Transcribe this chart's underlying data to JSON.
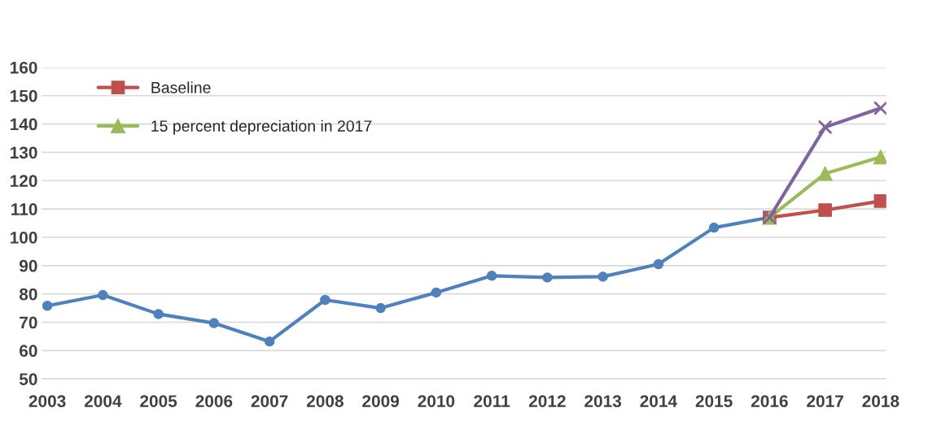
{
  "chart_data": {
    "type": "line",
    "categories": [
      "2003",
      "2004",
      "2005",
      "2006",
      "2007",
      "2008",
      "2009",
      "2010",
      "2011",
      "2012",
      "2013",
      "2014",
      "2015",
      "2016",
      "2017",
      "2018"
    ],
    "series": [
      {
        "color": "#4f81bd",
        "marker": "circle",
        "values": [
          75.8,
          79.6,
          72.9,
          69.7,
          63.2,
          77.9,
          75.0,
          80.5,
          86.4,
          85.8,
          86.1,
          90.5,
          103.4,
          107.0,
          null,
          null
        ]
      },
      {
        "name": "Baseline",
        "color": "#c0504d",
        "marker": "square",
        "values": [
          null,
          null,
          null,
          null,
          null,
          null,
          null,
          null,
          null,
          null,
          null,
          null,
          null,
          107.0,
          109.6,
          112.8
        ]
      },
      {
        "name": "15 percent depreciation in 2017",
        "color": "#9bbb59",
        "marker": "triangle",
        "values": [
          null,
          null,
          null,
          null,
          null,
          null,
          null,
          null,
          null,
          null,
          null,
          null,
          null,
          107.0,
          122.5,
          128.3
        ]
      },
      {
        "color": "#8064a2",
        "marker": "cross",
        "values": [
          null,
          null,
          null,
          null,
          null,
          null,
          null,
          null,
          null,
          null,
          null,
          null,
          null,
          107.0,
          138.9,
          145.6
        ]
      }
    ],
    "ylim": [
      50,
      160
    ],
    "yticks": [
      50,
      60,
      70,
      80,
      90,
      100,
      110,
      120,
      130,
      140,
      150,
      160
    ],
    "grid": "y",
    "legend": "top left"
  }
}
